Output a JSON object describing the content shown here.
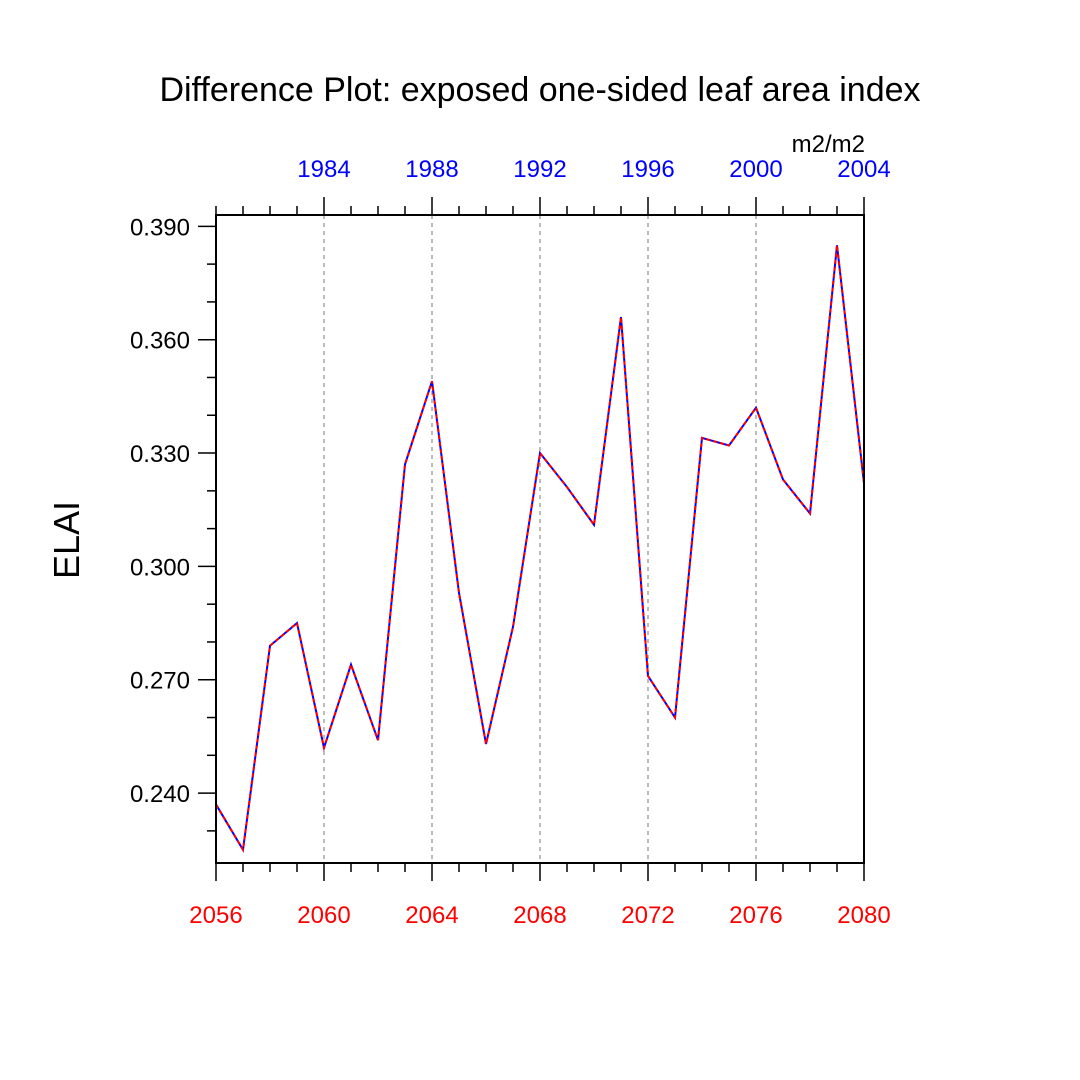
{
  "chart_data": {
    "type": "line",
    "title": "Difference Plot: exposed one-sided leaf area index",
    "ylabel": "ELAI",
    "units": "m2/m2",
    "x": [
      2056,
      2057,
      2058,
      2059,
      2060,
      2061,
      2062,
      2063,
      2064,
      2065,
      2066,
      2067,
      2068,
      2069,
      2070,
      2071,
      2072,
      2073,
      2074,
      2075,
      2076,
      2077,
      2078,
      2079,
      2080
    ],
    "x_top": [
      1980,
      1981,
      1982,
      1983,
      1984,
      1985,
      1986,
      1987,
      1988,
      1989,
      1990,
      1991,
      1992,
      1993,
      1994,
      1995,
      1996,
      1997,
      1998,
      1999,
      2000,
      2001,
      2002,
      2003,
      2004
    ],
    "series": [
      {
        "color": "#0000ff",
        "values": [
          0.237,
          0.225,
          0.279,
          0.285,
          0.252,
          0.274,
          0.254,
          0.327,
          0.349,
          0.293,
          0.253,
          0.284,
          0.33,
          0.321,
          0.311,
          0.366,
          0.271,
          0.26,
          0.334,
          0.332,
          0.342,
          0.323,
          0.314,
          0.385,
          0.322
        ]
      },
      {
        "color": "#ff0000",
        "values": [
          0.237,
          0.225,
          0.279,
          0.285,
          0.252,
          0.274,
          0.254,
          0.327,
          0.349,
          0.293,
          0.253,
          0.284,
          0.33,
          0.321,
          0.311,
          0.366,
          0.271,
          0.26,
          0.334,
          0.332,
          0.342,
          0.323,
          0.314,
          0.385,
          0.322
        ]
      }
    ],
    "xlim": [
      2056,
      2080
    ],
    "ylim": [
      0.2215,
      0.393
    ],
    "x_ticks": [
      "2056",
      "2060",
      "2064",
      "2068",
      "2072",
      "2076",
      "2080"
    ],
    "x_top_ticks": [
      "1984",
      "1988",
      "1992",
      "1996",
      "2000",
      "2004"
    ],
    "y_ticks": [
      "0.240",
      "0.270",
      "0.300",
      "0.330",
      "0.360",
      "0.390"
    ],
    "x_grid": true,
    "bottom_axis_color": "#ff0000",
    "top_axis_color": "#0000ff"
  }
}
